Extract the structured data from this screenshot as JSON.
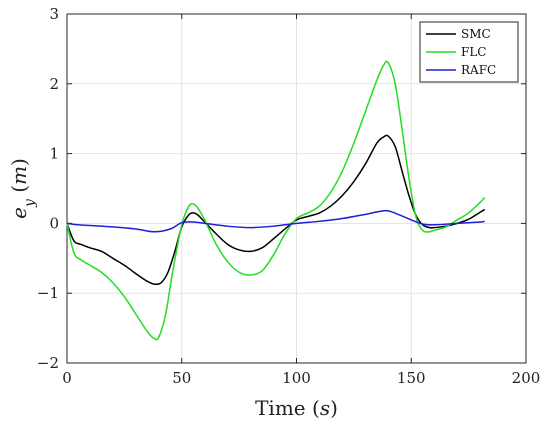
{
  "chart_data": {
    "type": "line",
    "xlabel_main": "Time",
    "xlabel_unit": "s",
    "ylabel_main": "e",
    "ylabel_sub": "y",
    "ylabel_unit": "m",
    "xlim": [
      0,
      200
    ],
    "ylim": [
      -2,
      3
    ],
    "xticks": [
      0,
      50,
      100,
      150,
      200
    ],
    "yticks": [
      -2,
      -1,
      0,
      1,
      2,
      3
    ],
    "grid": true,
    "legend_position": "top-right",
    "series": [
      {
        "name": "SMC",
        "color": "#000000",
        "x": [
          0,
          3,
          6,
          10,
          15,
          20,
          25,
          30,
          35,
          38,
          41,
          44,
          47,
          50,
          53,
          55,
          57,
          60,
          65,
          70,
          75,
          80,
          85,
          90,
          95,
          100,
          105,
          110,
          115,
          120,
          125,
          130,
          135,
          138,
          140,
          143,
          146,
          149,
          152,
          155,
          158,
          160,
          165,
          170,
          175,
          180,
          182
        ],
        "y": [
          0,
          -0.25,
          -0.3,
          -0.35,
          -0.4,
          -0.5,
          -0.6,
          -0.72,
          -0.83,
          -0.87,
          -0.85,
          -0.7,
          -0.4,
          -0.05,
          0.12,
          0.15,
          0.12,
          0.02,
          -0.15,
          -0.3,
          -0.38,
          -0.4,
          -0.35,
          -0.22,
          -0.08,
          0.05,
          0.1,
          0.15,
          0.25,
          0.4,
          0.6,
          0.85,
          1.15,
          1.24,
          1.25,
          1.1,
          0.75,
          0.4,
          0.12,
          -0.02,
          -0.06,
          -0.06,
          -0.04,
          0.0,
          0.06,
          0.16,
          0.2
        ]
      },
      {
        "name": "FLC",
        "color": "#22dd22",
        "x": [
          0,
          3,
          6,
          10,
          15,
          20,
          25,
          30,
          35,
          38,
          40,
          43,
          46,
          50,
          53,
          55,
          57,
          60,
          65,
          70,
          75,
          80,
          85,
          90,
          95,
          100,
          105,
          110,
          115,
          120,
          125,
          130,
          135,
          138,
          140,
          143,
          146,
          149,
          152,
          155,
          158,
          160,
          165,
          170,
          175,
          180,
          182
        ],
        "y": [
          0,
          -0.42,
          -0.52,
          -0.6,
          -0.7,
          -0.85,
          -1.05,
          -1.3,
          -1.55,
          -1.65,
          -1.63,
          -1.3,
          -0.7,
          -0.02,
          0.24,
          0.28,
          0.22,
          0.05,
          -0.3,
          -0.55,
          -0.7,
          -0.74,
          -0.68,
          -0.45,
          -0.15,
          0.07,
          0.15,
          0.25,
          0.45,
          0.75,
          1.15,
          1.6,
          2.05,
          2.27,
          2.3,
          2.0,
          1.35,
          0.65,
          0.1,
          -0.1,
          -0.12,
          -0.1,
          -0.05,
          0.05,
          0.15,
          0.3,
          0.37
        ]
      },
      {
        "name": "RAFC",
        "color": "#1f1fd6",
        "x": [
          0,
          5,
          10,
          20,
          30,
          38,
          45,
          50,
          55,
          60,
          70,
          80,
          90,
          100,
          110,
          120,
          130,
          136,
          140,
          145,
          150,
          155,
          160,
          170,
          180,
          182
        ],
        "y": [
          0,
          -0.02,
          -0.03,
          -0.05,
          -0.08,
          -0.12,
          -0.08,
          0.01,
          0.02,
          0.0,
          -0.04,
          -0.06,
          -0.04,
          0.0,
          0.03,
          0.07,
          0.13,
          0.17,
          0.18,
          0.12,
          0.05,
          -0.01,
          -0.02,
          0.0,
          0.02,
          0.03
        ]
      }
    ]
  }
}
